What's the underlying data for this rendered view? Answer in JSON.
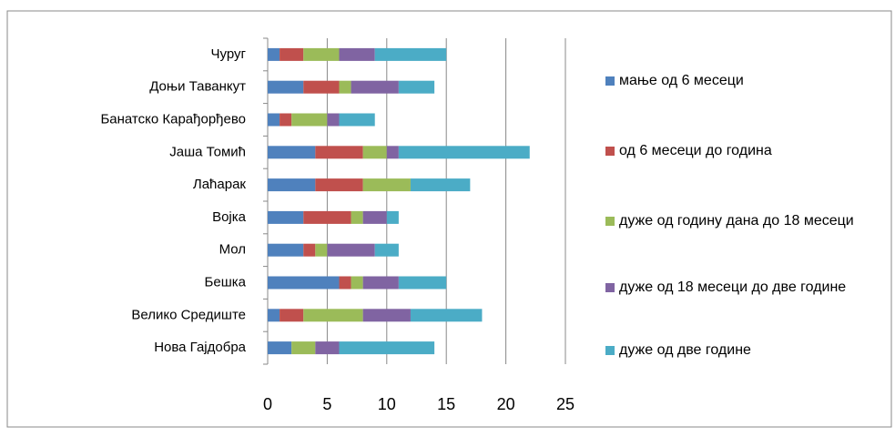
{
  "chart_data": {
    "type": "stacked-bar-horizontal",
    "categories": [
      "Чуруг",
      "Доњи Таванкут",
      "Банатско Карађорђево",
      "Јаша Томић",
      "Лаћарак",
      "Војка",
      "Мол",
      "Бешка",
      "Велико Средиште",
      "Нова Гајдобра"
    ],
    "series": [
      {
        "name": "мање од 6 месеци",
        "color": "#4f81bd",
        "values": [
          1,
          3,
          1,
          4,
          4,
          3,
          3,
          6,
          1,
          2
        ]
      },
      {
        "name": "од 6 месеци до година",
        "color": "#c0504d",
        "values": [
          2,
          3,
          1,
          4,
          4,
          4,
          1,
          1,
          2,
          0
        ]
      },
      {
        "name": "дуже од годину дана до 18 месеци",
        "color": "#9bbb59",
        "values": [
          3,
          1,
          3,
          2,
          4,
          1,
          1,
          1,
          5,
          2
        ]
      },
      {
        "name": "дуже од 18 месеци до две године",
        "color": "#8064a2",
        "values": [
          3,
          4,
          1,
          1,
          0,
          2,
          4,
          3,
          4,
          2
        ]
      },
      {
        "name": "дуже од две године",
        "color": "#4bacc6",
        "values": [
          6,
          3,
          3,
          11,
          5,
          1,
          2,
          4,
          6,
          8
        ]
      }
    ],
    "xlim": [
      0,
      25
    ],
    "xticks": [
      0,
      5,
      10,
      15,
      20,
      25
    ],
    "grid": true,
    "legend": "right"
  }
}
